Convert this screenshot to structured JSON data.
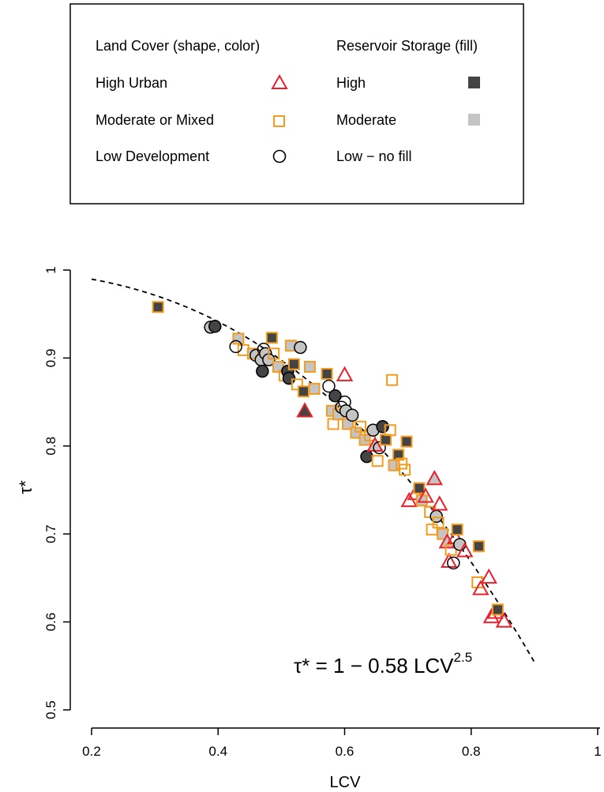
{
  "legend": {
    "land_cover_title": "Land Cover (shape, color)",
    "storage_title": "Reservoir Storage (fill)",
    "land_cover_items": [
      {
        "label": "High Urban",
        "shape": "triangle-icon",
        "color": "#e8202a"
      },
      {
        "label": "Moderate or Mixed",
        "shape": "square-icon",
        "color": "#f39c1f"
      },
      {
        "label": "Low Development",
        "shape": "circle-icon",
        "color": "#000000"
      }
    ],
    "storage_items": [
      {
        "label": "High",
        "fill": "#444444"
      },
      {
        "label": "Moderate",
        "fill": "#c4c4c4"
      },
      {
        "label": "Low − no fill",
        "fill": "none"
      }
    ]
  },
  "chart_data": {
    "type": "scatter",
    "xlabel": "LCV",
    "ylabel": "τ*",
    "xlim": [
      0.2,
      1.0
    ],
    "ylim": [
      0.5,
      1.0
    ],
    "xticks": [
      0.2,
      0.4,
      0.6,
      0.8,
      1.0
    ],
    "xtick_labels": [
      "0.2",
      "0.4",
      "0.6",
      "0.8",
      "1"
    ],
    "yticks": [
      0.5,
      0.6,
      0.7,
      0.8,
      0.9,
      1.0
    ],
    "ytick_labels": [
      "0.5",
      "0.6",
      "0.7",
      "0.8",
      "0.9",
      "1"
    ],
    "equation": {
      "prefix": "τ* = 1 − 0.58 LCV",
      "exponent": "2.5"
    },
    "curve": {
      "formula": "1 - 0.58*x^2.5",
      "x_range": [
        0.2,
        0.9
      ],
      "style": "dashed"
    },
    "colors": {
      "urban": "#e8202a",
      "mixed": "#f39c1f",
      "low": "#000000",
      "fill_high": "#444444",
      "fill_moderate": "#c4c4c4"
    },
    "points": [
      {
        "x": 0.305,
        "y": 0.958,
        "cover": "mixed",
        "storage": "high"
      },
      {
        "x": 0.388,
        "y": 0.935,
        "cover": "low",
        "storage": "moderate"
      },
      {
        "x": 0.395,
        "y": 0.936,
        "cover": "low",
        "storage": "high"
      },
      {
        "x": 0.432,
        "y": 0.922,
        "cover": "mixed",
        "storage": "moderate"
      },
      {
        "x": 0.44,
        "y": 0.909,
        "cover": "mixed",
        "storage": "none"
      },
      {
        "x": 0.428,
        "y": 0.913,
        "cover": "low",
        "storage": "none"
      },
      {
        "x": 0.455,
        "y": 0.905,
        "cover": "mixed",
        "storage": "moderate"
      },
      {
        "x": 0.46,
        "y": 0.903,
        "cover": "low",
        "storage": "none"
      },
      {
        "x": 0.468,
        "y": 0.898,
        "cover": "low",
        "storage": "moderate"
      },
      {
        "x": 0.472,
        "y": 0.91,
        "cover": "low",
        "storage": "none"
      },
      {
        "x": 0.475,
        "y": 0.905,
        "cover": "low",
        "storage": "moderate"
      },
      {
        "x": 0.47,
        "y": 0.885,
        "cover": "low",
        "storage": "high"
      },
      {
        "x": 0.48,
        "y": 0.898,
        "cover": "low",
        "storage": "moderate"
      },
      {
        "x": 0.485,
        "y": 0.923,
        "cover": "mixed",
        "storage": "high"
      },
      {
        "x": 0.488,
        "y": 0.905,
        "cover": "mixed",
        "storage": "none"
      },
      {
        "x": 0.495,
        "y": 0.89,
        "cover": "mixed",
        "storage": "moderate"
      },
      {
        "x": 0.505,
        "y": 0.88,
        "cover": "mixed",
        "storage": "none"
      },
      {
        "x": 0.51,
        "y": 0.885,
        "cover": "low",
        "storage": "high"
      },
      {
        "x": 0.512,
        "y": 0.877,
        "cover": "low",
        "storage": "high"
      },
      {
        "x": 0.515,
        "y": 0.914,
        "cover": "mixed",
        "storage": "moderate"
      },
      {
        "x": 0.52,
        "y": 0.893,
        "cover": "mixed",
        "storage": "high"
      },
      {
        "x": 0.525,
        "y": 0.87,
        "cover": "mixed",
        "storage": "none"
      },
      {
        "x": 0.53,
        "y": 0.912,
        "cover": "low",
        "storage": "moderate"
      },
      {
        "x": 0.535,
        "y": 0.862,
        "cover": "mixed",
        "storage": "high"
      },
      {
        "x": 0.537,
        "y": 0.839,
        "cover": "urban",
        "storage": "high"
      },
      {
        "x": 0.545,
        "y": 0.89,
        "cover": "mixed",
        "storage": "moderate"
      },
      {
        "x": 0.552,
        "y": 0.865,
        "cover": "mixed",
        "storage": "moderate"
      },
      {
        "x": 0.572,
        "y": 0.882,
        "cover": "mixed",
        "storage": "high"
      },
      {
        "x": 0.575,
        "y": 0.868,
        "cover": "low",
        "storage": "none"
      },
      {
        "x": 0.58,
        "y": 0.84,
        "cover": "mixed",
        "storage": "moderate"
      },
      {
        "x": 0.582,
        "y": 0.825,
        "cover": "mixed",
        "storage": "none"
      },
      {
        "x": 0.585,
        "y": 0.857,
        "cover": "low",
        "storage": "high"
      },
      {
        "x": 0.59,
        "y": 0.836,
        "cover": "mixed",
        "storage": "moderate"
      },
      {
        "x": 0.595,
        "y": 0.844,
        "cover": "low",
        "storage": "none"
      },
      {
        "x": 0.6,
        "y": 0.88,
        "cover": "urban",
        "storage": "none"
      },
      {
        "x": 0.6,
        "y": 0.85,
        "cover": "low",
        "storage": "none"
      },
      {
        "x": 0.602,
        "y": 0.84,
        "cover": "low",
        "storage": "moderate"
      },
      {
        "x": 0.605,
        "y": 0.825,
        "cover": "mixed",
        "storage": "moderate"
      },
      {
        "x": 0.612,
        "y": 0.835,
        "cover": "low",
        "storage": "moderate"
      },
      {
        "x": 0.618,
        "y": 0.815,
        "cover": "mixed",
        "storage": "moderate"
      },
      {
        "x": 0.625,
        "y": 0.822,
        "cover": "mixed",
        "storage": "none"
      },
      {
        "x": 0.632,
        "y": 0.807,
        "cover": "mixed",
        "storage": "moderate"
      },
      {
        "x": 0.635,
        "y": 0.788,
        "cover": "low",
        "storage": "high"
      },
      {
        "x": 0.64,
        "y": 0.812,
        "cover": "mixed",
        "storage": "none"
      },
      {
        "x": 0.645,
        "y": 0.818,
        "cover": "low",
        "storage": "moderate"
      },
      {
        "x": 0.648,
        "y": 0.8,
        "cover": "urban",
        "storage": "moderate"
      },
      {
        "x": 0.652,
        "y": 0.783,
        "cover": "mixed",
        "storage": "none"
      },
      {
        "x": 0.655,
        "y": 0.798,
        "cover": "low",
        "storage": "none"
      },
      {
        "x": 0.66,
        "y": 0.822,
        "cover": "low",
        "storage": "high"
      },
      {
        "x": 0.665,
        "y": 0.807,
        "cover": "mixed",
        "storage": "high"
      },
      {
        "x": 0.672,
        "y": 0.818,
        "cover": "mixed",
        "storage": "none"
      },
      {
        "x": 0.675,
        "y": 0.875,
        "cover": "mixed",
        "storage": "none"
      },
      {
        "x": 0.678,
        "y": 0.778,
        "cover": "mixed",
        "storage": "moderate"
      },
      {
        "x": 0.685,
        "y": 0.79,
        "cover": "mixed",
        "storage": "high"
      },
      {
        "x": 0.69,
        "y": 0.78,
        "cover": "mixed",
        "storage": "none"
      },
      {
        "x": 0.695,
        "y": 0.773,
        "cover": "mixed",
        "storage": "none"
      },
      {
        "x": 0.698,
        "y": 0.805,
        "cover": "mixed",
        "storage": "high"
      },
      {
        "x": 0.702,
        "y": 0.737,
        "cover": "urban",
        "storage": "none"
      },
      {
        "x": 0.712,
        "y": 0.745,
        "cover": "urban",
        "storage": "none"
      },
      {
        "x": 0.718,
        "y": 0.752,
        "cover": "mixed",
        "storage": "high"
      },
      {
        "x": 0.722,
        "y": 0.738,
        "cover": "mixed",
        "storage": "moderate"
      },
      {
        "x": 0.728,
        "y": 0.742,
        "cover": "urban",
        "storage": "none"
      },
      {
        "x": 0.735,
        "y": 0.725,
        "cover": "mixed",
        "storage": "none"
      },
      {
        "x": 0.738,
        "y": 0.705,
        "cover": "mixed",
        "storage": "none"
      },
      {
        "x": 0.742,
        "y": 0.762,
        "cover": "urban",
        "storage": "moderate"
      },
      {
        "x": 0.745,
        "y": 0.72,
        "cover": "low",
        "storage": "moderate"
      },
      {
        "x": 0.748,
        "y": 0.713,
        "cover": "mixed",
        "storage": "none"
      },
      {
        "x": 0.75,
        "y": 0.733,
        "cover": "urban",
        "storage": "none"
      },
      {
        "x": 0.755,
        "y": 0.7,
        "cover": "mixed",
        "storage": "moderate"
      },
      {
        "x": 0.762,
        "y": 0.69,
        "cover": "urban",
        "storage": "moderate"
      },
      {
        "x": 0.765,
        "y": 0.668,
        "cover": "urban",
        "storage": "none"
      },
      {
        "x": 0.768,
        "y": 0.682,
        "cover": "mixed",
        "storage": "none"
      },
      {
        "x": 0.772,
        "y": 0.667,
        "cover": "low",
        "storage": "none"
      },
      {
        "x": 0.775,
        "y": 0.695,
        "cover": "urban",
        "storage": "none"
      },
      {
        "x": 0.778,
        "y": 0.705,
        "cover": "mixed",
        "storage": "high"
      },
      {
        "x": 0.782,
        "y": 0.688,
        "cover": "low",
        "storage": "moderate"
      },
      {
        "x": 0.79,
        "y": 0.68,
        "cover": "urban",
        "storage": "none"
      },
      {
        "x": 0.81,
        "y": 0.645,
        "cover": "mixed",
        "storage": "none"
      },
      {
        "x": 0.812,
        "y": 0.686,
        "cover": "mixed",
        "storage": "high"
      },
      {
        "x": 0.815,
        "y": 0.637,
        "cover": "urban",
        "storage": "none"
      },
      {
        "x": 0.828,
        "y": 0.65,
        "cover": "urban",
        "storage": "none"
      },
      {
        "x": 0.832,
        "y": 0.605,
        "cover": "urban",
        "storage": "none"
      },
      {
        "x": 0.838,
        "y": 0.61,
        "cover": "urban",
        "storage": "none"
      },
      {
        "x": 0.842,
        "y": 0.614,
        "cover": "mixed",
        "storage": "high"
      },
      {
        "x": 0.852,
        "y": 0.6,
        "cover": "urban",
        "storage": "none"
      }
    ]
  }
}
